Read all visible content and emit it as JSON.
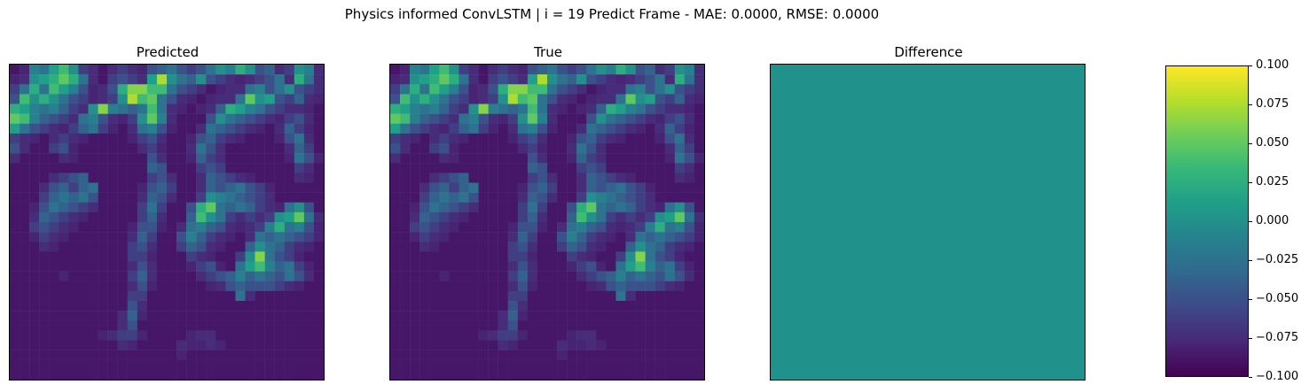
{
  "suptitle": "Physics informed ConvLSTM | i = 19 Predict Frame - MAE: 0.0000, RMSE: 0.0000",
  "chart_data": {
    "type": "heatmap",
    "grid_size": 32,
    "value_range": [
      0,
      0.8
    ],
    "panels": [
      {
        "title": "Predicted",
        "source": "field",
        "x_ticks": [],
        "y_ticks": []
      },
      {
        "title": "True",
        "source": "field",
        "x_ticks": [],
        "y_ticks": []
      },
      {
        "title": "Difference",
        "source": "zeros",
        "x_ticks": [],
        "y_ticks": []
      }
    ],
    "field": [
      "0.05,0.08,0.35,0.30,0.45,0.55,0.40,0.15,0.10,0.05,0.10,0.15,0.10,0.08,0.20,0.25,0.30,0.20,0.15,0.20,0.30,0.40,0.35,0.50,0.40,0.20,0.25,0.10,0.15,0.40,0.35,0.10",
      "0.08,0.10,0.40,0.45,0.50,0.60,0.50,0.30,0.10,0.05,0.15,0.20,0.15,0.10,0.45,0.70,0.40,0.30,0.25,0.40,0.20,0.15,0.10,0.08,0.10,0.15,0.20,0.30,0.10,0.50,0.30,0.10",
      "0.15,0.30,0.50,0.30,0.55,0.45,0.35,0.20,0.08,0.10,0.20,0.50,0.65,0.65,0.55,0.55,0.30,0.20,0.15,0.10,0.05,0.08,0.10,0.10,0.30,0.35,0.20,0.30,0.40,0.20,0.15,0.10",
      "0.20,0.55,0.40,0.50,0.40,0.30,0.20,0.15,0.08,0.10,0.15,0.40,0.70,0.55,0.60,0.30,0.20,0.10,0.08,0.05,0.08,0.10,0.10,0.30,0.60,0.40,0.45,0.20,0.15,0.25,0.10,0.08",
      "0.50,0.45,0.35,0.30,0.35,0.25,0.15,0.10,0.40,0.65,0.35,0.30,0.25,0.30,0.55,0.30,0.10,0.08,0.05,0.08,0.10,0.25,0.50,0.45,0.35,0.30,0.20,0.15,0.10,0.10,0.08,0.05",
      "0.60,0.55,0.35,0.25,0.20,0.15,0.10,0.30,0.35,0.20,0.10,0.08,0.15,0.40,0.60,0.35,0.10,0.05,0.05,0.05,0.20,0.40,0.30,0.25,0.20,0.15,0.10,0.08,0.15,0.20,0.10,0.05",
      "0.45,0.30,0.20,0.15,0.10,0.08,0.15,0.25,0.30,0.15,0.08,0.05,0.10,0.30,0.35,0.20,0.08,0.05,0.05,0.10,0.30,0.25,0.20,0.15,0.10,0.08,0.05,0.10,0.25,0.15,0.08,0.05",
      "0.15,0.10,0.08,0.05,0.10,0.15,0.10,0.08,0.05,0.05,0.05,0.05,0.08,0.15,0.20,0.10,0.05,0.05,0.08,0.20,0.25,0.15,0.10,0.08,0.05,0.05,0.05,0.08,0.20,0.30,0.10,0.05",
      "0.20,0.10,0.05,0.05,0.15,0.20,0.08,0.05,0.05,0.05,0.05,0.05,0.05,0.10,0.15,0.08,0.05,0.05,0.10,0.30,0.20,0.10,0.05,0.05,0.05,0.05,0.05,0.05,0.10,0.25,0.15,0.05",
      "0.10,0.05,0.05,0.05,0.05,0.10,0.08,0.05,0.05,0.05,0.05,0.05,0.05,0.05,0.20,0.10,0.05,0.05,0.08,0.25,0.15,0.10,0.05,0.05,0.05,0.05,0.05,0.05,0.08,0.30,0.20,0.08",
      "0.05,0.05,0.05,0.05,0.05,0.05,0.05,0.05,0.05,0.05,0.05,0.05,0.05,0.05,0.25,0.20,0.05,0.05,0.05,0.15,0.20,0.15,0.05,0.05,0.05,0.05,0.05,0.05,0.05,0.15,0.10,0.05",
      "0.05,0.05,0.05,0.05,0.10,0.15,0.20,0.25,0.05,0.05,0.05,0.05,0.05,0.05,0.15,0.20,0.10,0.05,0.05,0.10,0.25,0.20,0.15,0.10,0.08,0.05,0.05,0.05,0.05,0.10,0.08,0.05",
      "0.05,0.05,0.05,0.10,0.20,0.25,0.15,0.25,0.30,0.05,0.05,0.05,0.05,0.08,0.20,0.25,0.15,0.05,0.05,0.10,0.25,0.20,0.25,0.30,0.20,0.15,0.08,0.05,0.05,0.05,0.05,0.05",
      "0.05,0.05,0.05,0.15,0.25,0.30,0.25,0.30,0.20,0.05,0.05,0.05,0.05,0.10,0.25,0.20,0.10,0.05,0.05,0.15,0.40,0.35,0.30,0.25,0.20,0.15,0.10,0.05,0.05,0.05,0.05,0.05",
      "0.05,0.05,0.08,0.20,0.30,0.25,0.20,0.15,0.10,0.05,0.05,0.05,0.05,0.15,0.30,0.15,0.05,0.05,0.20,0.50,0.60,0.30,0.25,0.30,0.25,0.15,0.10,0.08,0.30,0.40,0.20,0.05",
      "0.05,0.05,0.10,0.25,0.20,0.15,0.10,0.08,0.05,0.05,0.05,0.05,0.05,0.15,0.25,0.10,0.05,0.05,0.25,0.55,0.40,0.30,0.15,0.10,0.15,0.10,0.15,0.40,0.45,0.60,0.30,0.10",
      "0.05,0.05,0.15,0.20,0.15,0.10,0.08,0.05,0.05,0.05,0.05,0.05,0.08,0.20,0.20,0.08,0.05,0.10,0.30,0.35,0.25,0.20,0.10,0.08,0.10,0.15,0.35,0.50,0.30,0.35,0.20,0.08",
      "0.05,0.05,0.08,0.15,0.10,0.08,0.05,0.05,0.05,0.05,0.05,0.05,0.10,0.25,0.15,0.05,0.05,0.20,0.35,0.25,0.15,0.10,0.08,0.05,0.10,0.30,0.25,0.30,0.25,0.20,0.15,0.08",
      "0.05,0.05,0.05,0.10,0.08,0.05,0.05,0.05,0.05,0.05,0.05,0.05,0.15,0.20,0.10,0.05,0.05,0.15,0.25,0.20,0.10,0.08,0.05,0.05,0.25,0.40,0.30,0.25,0.15,0.10,0.08,0.05",
      "0.05,0.05,0.05,0.05,0.05,0.05,0.05,0.05,0.05,0.05,0.05,0.05,0.15,0.15,0.08,0.05,0.05,0.05,0.15,0.10,0.08,0.05,0.05,0.15,0.40,0.65,0.30,0.20,0.15,0.08,0.05,0.05",
      "0.05,0.05,0.05,0.05,0.05,0.05,0.05,0.05,0.05,0.05,0.05,0.05,0.10,0.20,0.10,0.05,0.05,0.05,0.08,0.15,0.20,0.08,0.05,0.30,0.45,0.55,0.35,0.25,0.30,0.15,0.08,0.05",
      "0.05,0.05,0.05,0.05,0.05,0.08,0.05,0.05,0.05,0.05,0.05,0.05,0.15,0.25,0.10,0.05,0.05,0.05,0.05,0.10,0.15,0.20,0.25,0.35,0.25,0.30,0.25,0.20,0.30,0.20,0.10,0.05",
      "0.05,0.05,0.05,0.05,0.05,0.05,0.05,0.05,0.05,0.05,0.05,0.05,0.10,0.20,0.08,0.05,0.05,0.05,0.05,0.05,0.08,0.10,0.20,0.25,0.20,0.20,0.20,0.15,0.10,0.08,0.05,0.05",
      "0.05,0.05,0.05,0.05,0.05,0.05,0.05,0.05,0.05,0.05,0.05,0.05,0.15,0.15,0.05,0.05,0.05,0.05,0.05,0.05,0.05,0.05,0.05,0.30,0.10,0.05,0.05,0.05,0.05,0.05,0.05,0.05",
      "0.05,0.05,0.05,0.05,0.05,0.05,0.05,0.05,0.05,0.05,0.05,0.05,0.20,0.10,0.05,0.05,0.05,0.05,0.05,0.05,0.05,0.05,0.05,0.05,0.05,0.05,0.05,0.05,0.05,0.05,0.05,0.05",
      "0.05,0.05,0.05,0.05,0.05,0.05,0.05,0.05,0.05,0.05,0.05,0.10,0.25,0.08,0.05,0.05,0.05,0.05,0.05,0.05,0.05,0.05,0.05,0.05,0.05,0.05,0.05,0.05,0.05,0.05,0.05,0.05",
      "0.05,0.05,0.05,0.05,0.05,0.05,0.05,0.05,0.05,0.05,0.05,0.10,0.20,0.05,0.05,0.05,0.05,0.05,0.05,0.05,0.05,0.05,0.05,0.05,0.05,0.05,0.05,0.05,0.05,0.05,0.05,0.05",
      "0.05,0.05,0.05,0.05,0.05,0.05,0.05,0.05,0.05,0.08,0.10,0.15,0.15,0.08,0.05,0.05,0.05,0.05,0.08,0.10,0.10,0.05,0.05,0.05,0.05,0.05,0.05,0.05,0.05,0.05,0.05,0.05",
      "0.05,0.05,0.05,0.05,0.05,0.05,0.05,0.05,0.05,0.05,0.05,0.10,0.08,0.05,0.05,0.05,0.05,0.10,0.08,0.08,0.10,0.08,0.05,0.05,0.05,0.05,0.05,0.05,0.05,0.05,0.05,0.05",
      "0.05,0.05,0.05,0.05,0.05,0.05,0.05,0.05,0.05,0.05,0.05,0.05,0.05,0.05,0.05,0.05,0.05,0.08,0.05,0.05,0.05,0.05,0.05,0.05,0.05,0.05,0.05,0.05,0.05,0.05,0.05,0.05",
      "0.05,0.05,0.05,0.05,0.05,0.05,0.05,0.05,0.05,0.05,0.05,0.05,0.05,0.05,0.05,0.05,0.05,0.05,0.05,0.05,0.05,0.05,0.05,0.05,0.05,0.05,0.05,0.05,0.05,0.05,0.05,0.05",
      "0.05,0.05,0.05,0.05,0.05,0.05,0.05,0.05,0.05,0.05,0.05,0.05,0.05,0.05,0.05,0.05,0.05,0.05,0.05,0.05,0.05,0.05,0.05,0.05,0.05,0.05,0.05,0.05,0.05,0.05,0.05,0.05"
    ],
    "colorbar": {
      "range": [
        -0.1,
        0.1
      ],
      "ticks": [
        "0.100",
        "0.075",
        "0.050",
        "0.025",
        "0.000",
        "−0.025",
        "−0.050",
        "−0.075",
        "−0.100"
      ],
      "tick_values": [
        0.1,
        0.075,
        0.05,
        0.025,
        0.0,
        -0.025,
        -0.05,
        -0.075,
        -0.1
      ]
    },
    "colormap": "viridis",
    "colormap_stops": [
      "#440154",
      "#482878",
      "#3e4989",
      "#31688e",
      "#26828e",
      "#1f9e89",
      "#35b779",
      "#6ece58",
      "#b5de2b",
      "#fde725"
    ],
    "difference_color": "#21918c"
  }
}
